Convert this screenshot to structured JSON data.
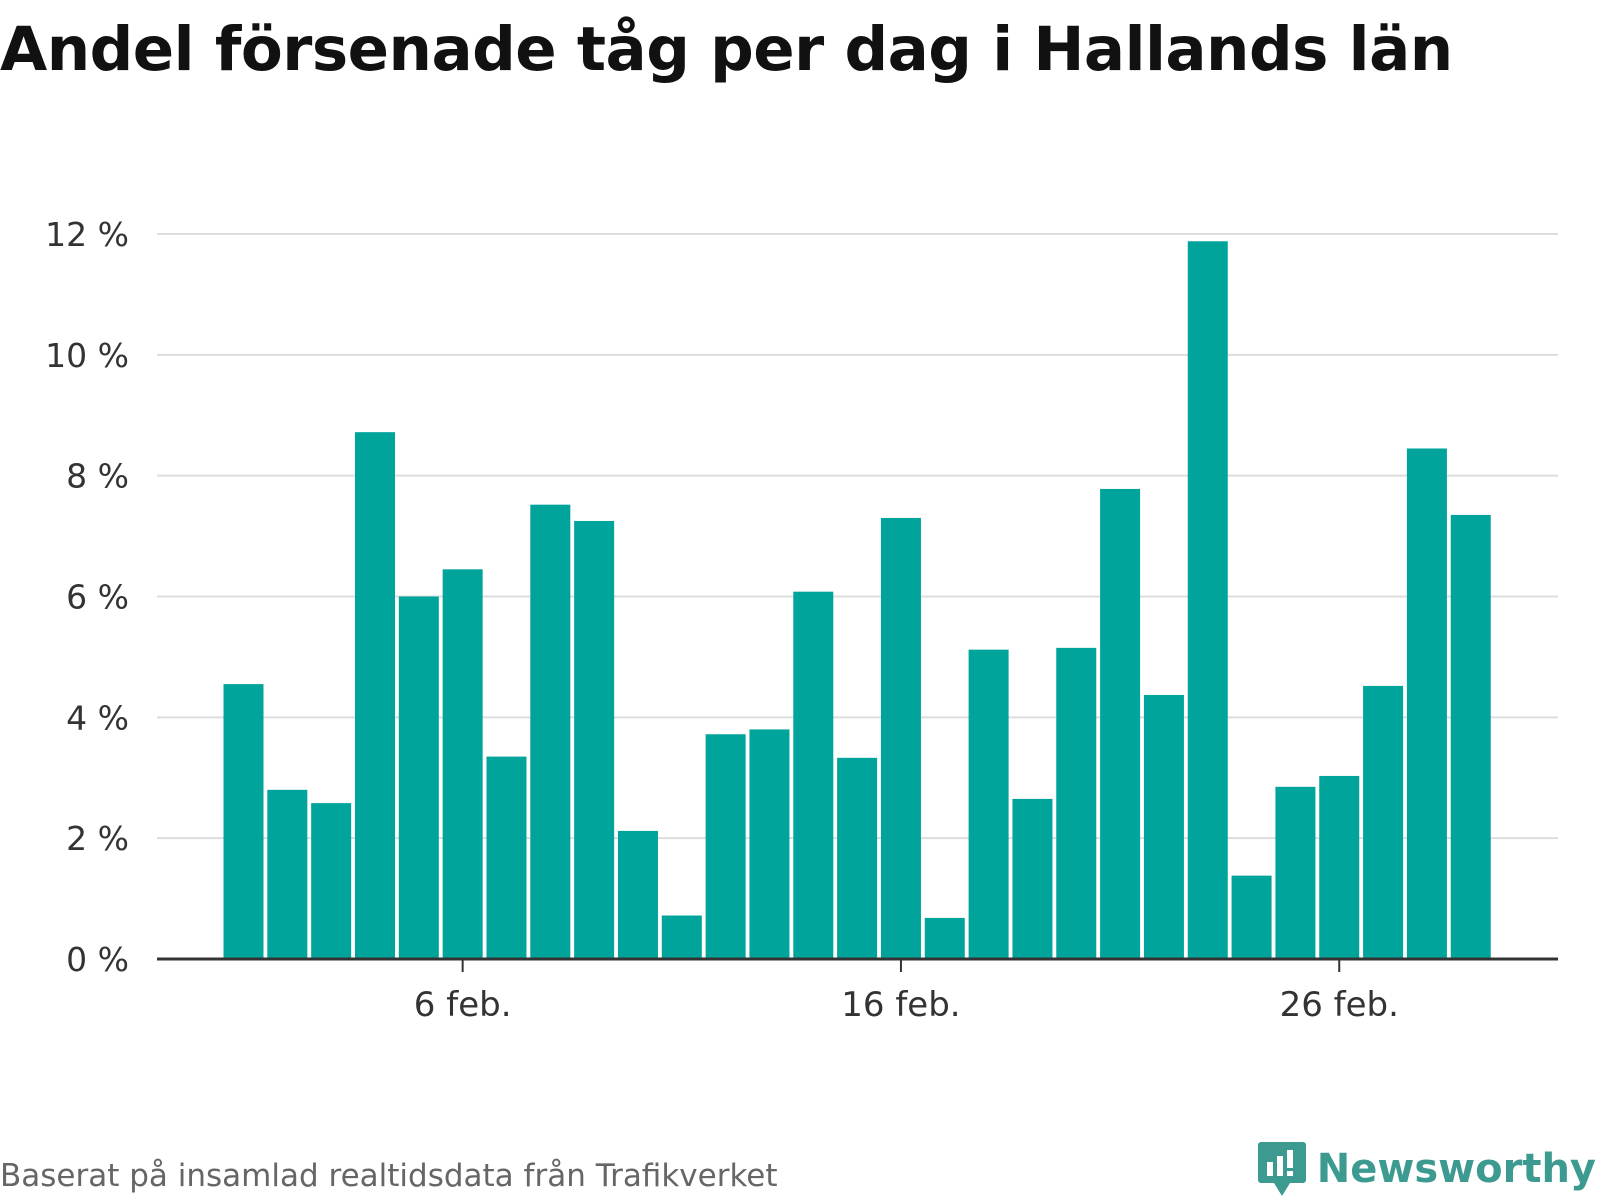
{
  "title": "Andel försenade tåg per dag i Hallands län",
  "source_note": "Baserat på insamlad realtidsdata från Trafikverket",
  "brand": {
    "name": "Newsworthy",
    "icon": "newsworthy-logo-icon",
    "color": "#3d9a91"
  },
  "colors": {
    "bar": "#00a49a",
    "grid": "#dddddd",
    "axis": "#333333"
  },
  "chart_data": {
    "type": "bar",
    "title": "Andel försenade tåg per dag i Hallands län",
    "xlabel": "",
    "ylabel": "",
    "ylim": [
      0,
      12
    ],
    "y_ticks": [
      0,
      2,
      4,
      6,
      8,
      10,
      12
    ],
    "y_tick_labels": [
      "0 %",
      "2 %",
      "4 %",
      "6 %",
      "8 %",
      "10 %",
      "12 %"
    ],
    "x_tick_labels": [
      {
        "label": "6 feb.",
        "category_index": 5
      },
      {
        "label": "16 feb.",
        "category_index": 15
      },
      {
        "label": "26 feb.",
        "category_index": 25
      }
    ],
    "categories": [
      "1 feb.",
      "2 feb.",
      "3 feb.",
      "4 feb.",
      "5 feb.",
      "6 feb.",
      "7 feb.",
      "8 feb.",
      "9 feb.",
      "10 feb.",
      "11 feb.",
      "12 feb.",
      "13 feb.",
      "14 feb.",
      "15 feb.",
      "16 feb.",
      "17 feb.",
      "18 feb.",
      "19 feb.",
      "20 feb.",
      "21 feb.",
      "22 feb.",
      "23 feb.",
      "24 feb.",
      "25 feb.",
      "26 feb.",
      "27 feb.",
      "28 feb.",
      "29 feb."
    ],
    "values": [
      4.55,
      2.8,
      2.58,
      8.72,
      6.0,
      6.45,
      3.35,
      7.52,
      7.25,
      2.12,
      0.72,
      3.72,
      3.8,
      6.08,
      3.33,
      7.3,
      0.68,
      5.12,
      2.65,
      5.15,
      7.78,
      4.37,
      11.88,
      1.38,
      2.85,
      3.03,
      4.52,
      8.45,
      7.35
    ],
    "grid": true,
    "legend": "none"
  }
}
